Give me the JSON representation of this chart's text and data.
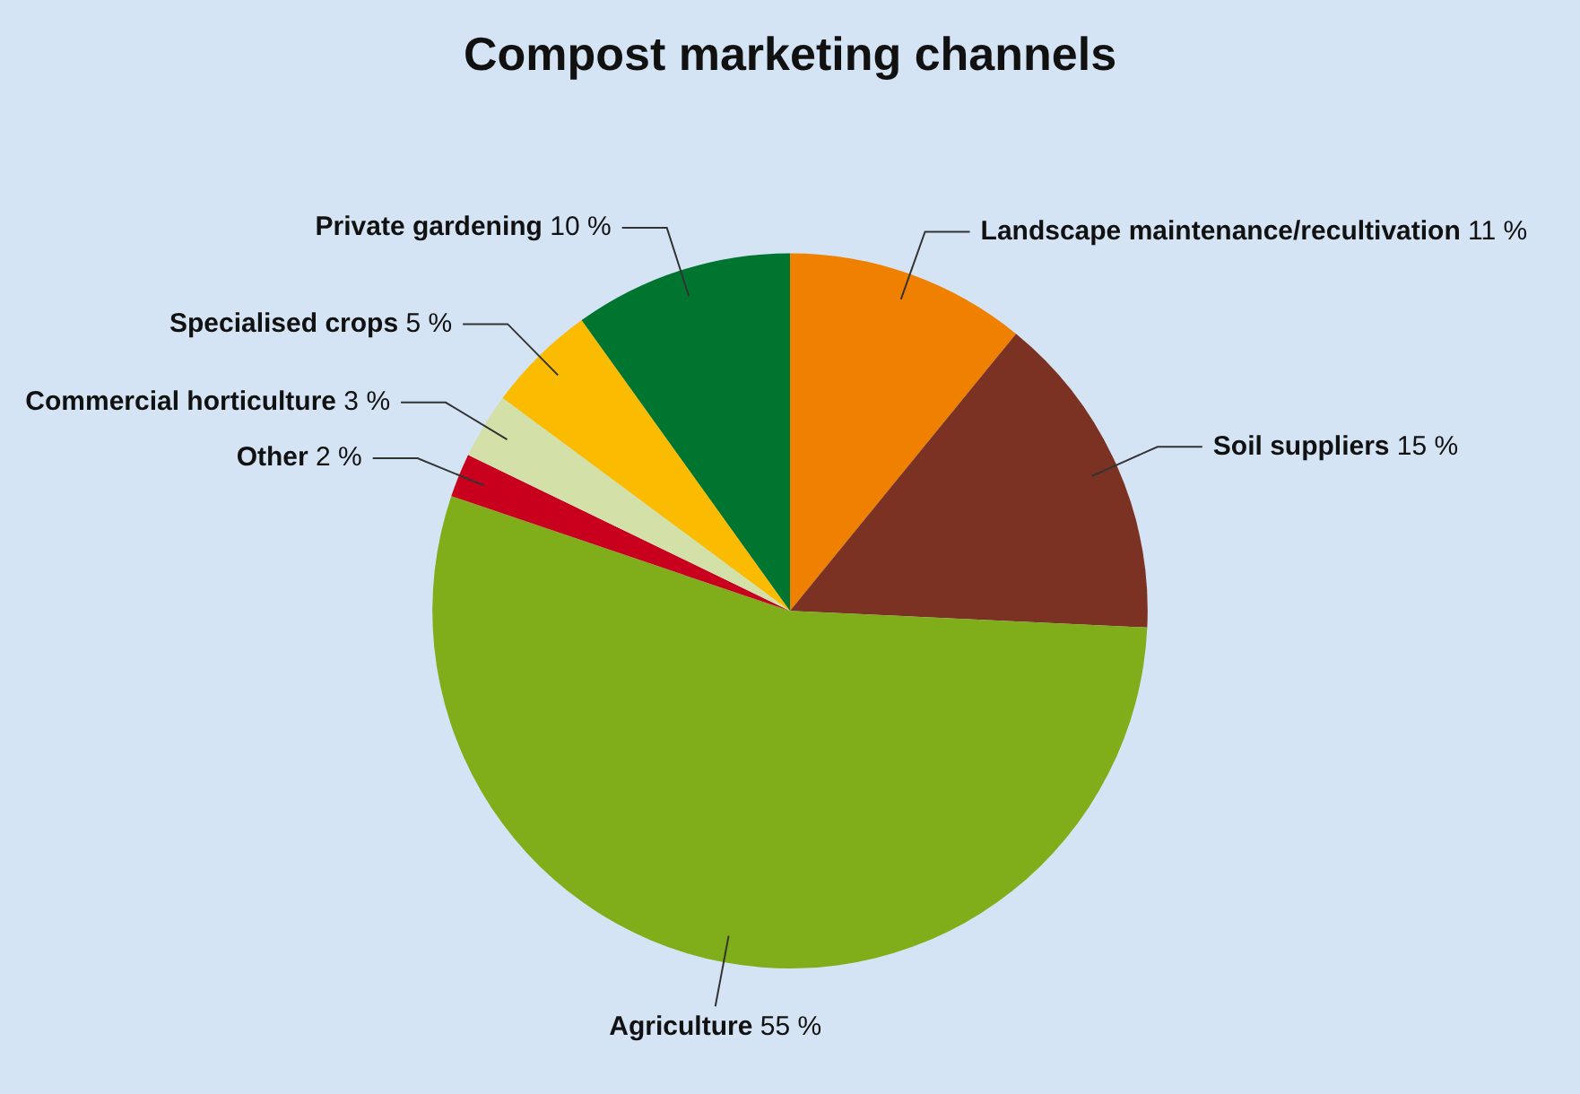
{
  "chart_data": {
    "type": "pie",
    "title": "Compost marketing channels",
    "categories": [
      "Landscape maintenance/recultivation",
      "Soil suppliers",
      "Agriculture",
      "Other",
      "Commercial horticulture",
      "Specialised crops",
      "Private gardening"
    ],
    "values": [
      11,
      15,
      55,
      2,
      3,
      5,
      10
    ],
    "value_labels": [
      "11 %",
      "15 %",
      "55 %",
      "2 %",
      "3 %",
      "5 %",
      "10 %"
    ],
    "colors": [
      "#ef8000",
      "#7b3222",
      "#80ae1a",
      "#c8001e",
      "#d3e0a8",
      "#fbbb00",
      "#007530"
    ],
    "legend": false
  }
}
